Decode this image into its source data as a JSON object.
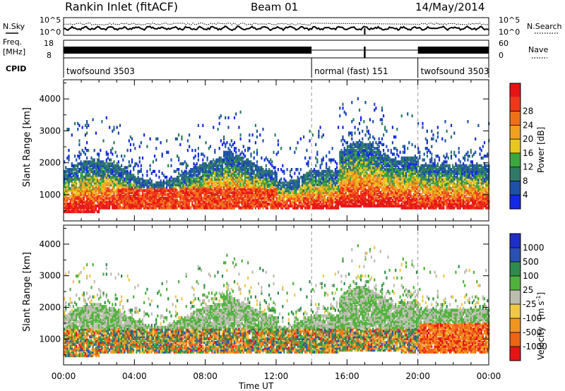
{
  "header": {
    "title": "Rankin Inlet (fitACF)",
    "beam": "Beam 01",
    "date": "14/May/2014"
  },
  "sky_panel": {
    "left_label": "N.Sky",
    "right_label": "N.Search",
    "ticks_left": [
      "10^5",
      "10^0"
    ],
    "ticks_right": [
      "10^5",
      "10^0"
    ]
  },
  "freq_panel": {
    "left_label_1": "Freq.",
    "left_label_2": "[MHz]",
    "ticks_left": [
      "18",
      "8"
    ],
    "ticks_right": [
      "60",
      "0"
    ],
    "right_label": "Nave"
  },
  "cpid": {
    "label": "CPID",
    "segments": [
      {
        "start_hour": 0,
        "end_hour": 14,
        "name": "twofsound 3503"
      },
      {
        "start_hour": 14,
        "end_hour": 20,
        "name": "normal (fast) 151"
      },
      {
        "start_hour": 20,
        "end_hour": 24,
        "name": "twofsound 3503"
      }
    ]
  },
  "colors": {
    "power": [
      "#1428e6",
      "#1e50a8",
      "#2f7a66",
      "#3aa83a",
      "#e8c81e",
      "#f0a020",
      "#f07018",
      "#f03818",
      "#e61414"
    ],
    "velocity": [
      "#1e2ec8",
      "#2a50b4",
      "#2f8a4e",
      "#50b23c",
      "#bcbcb0",
      "#f0c846",
      "#f0961e",
      "#ee6414",
      "#e61414"
    ]
  },
  "chart_data": [
    {
      "type": "heatmap",
      "name": "power",
      "xlabel": "",
      "ylabel": "Slant Range [km]",
      "xlim": [
        0,
        24
      ],
      "ylim": [
        180,
        4600
      ],
      "x_ticks": [
        "00:00",
        "04:00",
        "08:00",
        "12:00",
        "16:00",
        "20:00",
        "00:00"
      ],
      "y_ticks": [
        1000,
        2000,
        3000,
        4000
      ],
      "colorbar": {
        "label": "Power [dB]",
        "range": [
          0,
          32
        ],
        "tick_labels": [
          "4",
          "8",
          "12",
          "16",
          "20",
          "24",
          "28"
        ]
      }
    },
    {
      "type": "heatmap",
      "name": "velocity",
      "xlabel": "Time UT",
      "ylabel": "Slant Range [km]",
      "xlim": [
        0,
        24
      ],
      "ylim": [
        180,
        4600
      ],
      "x_ticks": [
        "00:00",
        "04:00",
        "08:00",
        "12:00",
        "16:00",
        "20:00",
        "00:00"
      ],
      "y_ticks": [
        1000,
        2000,
        3000,
        4000
      ],
      "colorbar": {
        "label_main": "Velocity",
        "label_unit": "[m s",
        "label_sup": "-1",
        "label_close": "]",
        "tick_labels": [
          "1000",
          "500",
          "100",
          "25",
          "-25",
          "-100",
          "-500",
          "-1000"
        ]
      }
    }
  ]
}
